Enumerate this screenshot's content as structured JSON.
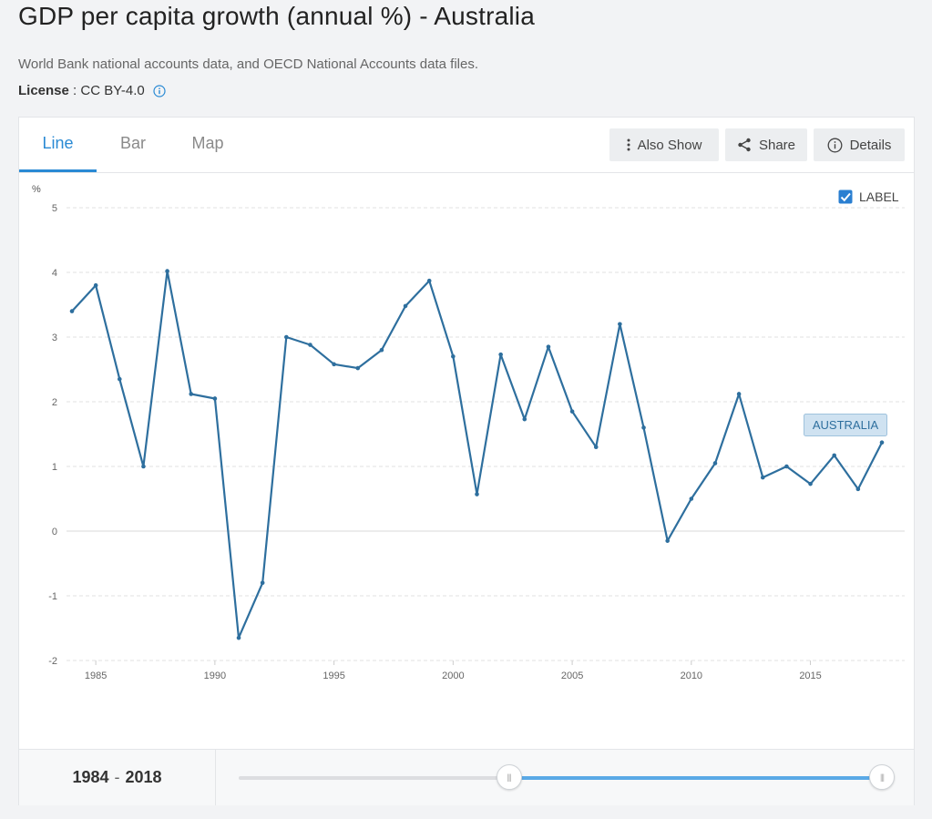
{
  "page": {
    "title": "GDP per capita growth (annual %) - Australia",
    "source": "World Bank national accounts data, and OECD National Accounts data files.",
    "license_label": "License",
    "license_sep": " : ",
    "license_value": "CC BY-4.0"
  },
  "tabs": [
    {
      "label": "Line",
      "active": true
    },
    {
      "label": "Bar",
      "active": false
    },
    {
      "label": "Map",
      "active": false
    }
  ],
  "actions": {
    "also_show": "Also Show",
    "share": "Share",
    "details": "Details"
  },
  "chart_controls": {
    "label_toggle": "LABEL",
    "label_checked": true
  },
  "chart_data": {
    "type": "line",
    "ylabel": "%",
    "ylim": [
      -2,
      5
    ],
    "yticks": [
      5,
      4,
      3,
      2,
      1,
      0,
      -1,
      -2
    ],
    "xlim": [
      1984,
      2018
    ],
    "xticks": [
      1985,
      1990,
      1995,
      2000,
      2005,
      2010,
      2015
    ],
    "grid": true,
    "color": "#2e6f9e",
    "series": [
      {
        "name": "AUSTRALIA",
        "x": [
          1984,
          1985,
          1986,
          1987,
          1988,
          1989,
          1990,
          1991,
          1992,
          1993,
          1994,
          1995,
          1996,
          1997,
          1998,
          1999,
          2000,
          2001,
          2002,
          2003,
          2004,
          2005,
          2006,
          2007,
          2008,
          2009,
          2010,
          2011,
          2012,
          2013,
          2014,
          2015,
          2016,
          2017,
          2018
        ],
        "values": [
          3.4,
          3.8,
          2.35,
          1.0,
          4.02,
          2.12,
          2.05,
          -1.65,
          -0.8,
          3.0,
          2.88,
          2.58,
          2.52,
          2.8,
          3.48,
          3.87,
          2.7,
          0.57,
          2.73,
          1.73,
          2.85,
          1.85,
          1.3,
          3.2,
          1.6,
          -0.15,
          0.5,
          1.05,
          2.12,
          0.83,
          1.0,
          0.73,
          1.17,
          0.65,
          1.37
        ]
      }
    ]
  },
  "range": {
    "start": "1984",
    "sep": "-",
    "end": "2018",
    "selected_start_fraction": 0.42,
    "selected_end_fraction": 1.0
  }
}
